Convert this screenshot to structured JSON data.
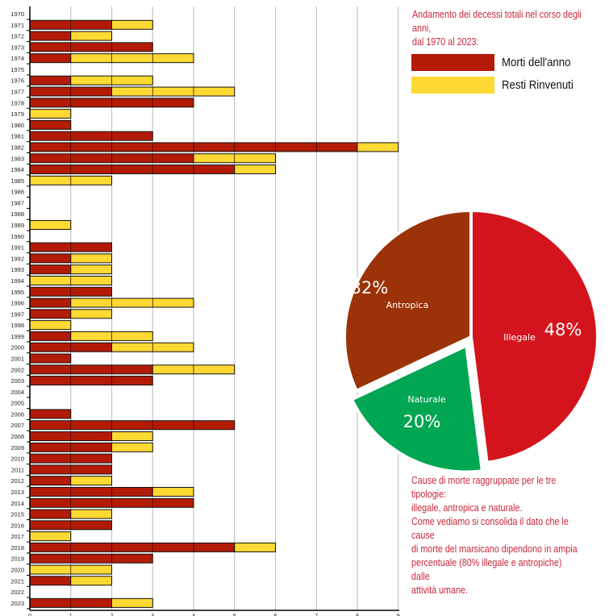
{
  "intro_text": [
    "Andamento dei decessi totali nel corso degli anni,",
    "dal 1970 al 2023:"
  ],
  "footer_text": [
    "Cause di morte raggruppate per le tre tipologie:",
    "illegale, antropica e naturale.",
    "Come vediamo si consolida il dato che le cause",
    "di morte del marsicano dipendono in ampia",
    "percentuale (80% illegale e antropiche) dalle",
    "attività umane."
  ],
  "chart_data": [
    {
      "type": "bar",
      "orientation": "horizontal",
      "stacked": true,
      "categories": [
        "1970",
        "1971",
        "1972",
        "1973",
        "1974",
        "1975",
        "1976",
        "1977",
        "1978",
        "1979",
        "1980",
        "1981",
        "1982",
        "1983",
        "1984",
        "1985",
        "1986",
        "1987",
        "1988",
        "1989",
        "1990",
        "1991",
        "1992",
        "1993",
        "1994",
        "1995",
        "1996",
        "1997",
        "1998",
        "1999",
        "2000",
        "2001",
        "2002",
        "2003",
        "2004",
        "2005",
        "2006",
        "2007",
        "2008",
        "2009",
        "2010",
        "2011",
        "2012",
        "2013",
        "2014",
        "2015",
        "2016",
        "2017",
        "2018",
        "2019",
        "2020",
        "2021",
        "2022",
        "2023"
      ],
      "series": [
        {
          "name": "Morti dell'anno",
          "color": "#b31b06",
          "values": [
            0,
            2,
            1,
            3,
            1,
            0,
            1,
            2,
            4,
            0,
            1,
            3,
            8,
            4,
            5,
            0,
            0,
            0,
            0,
            0,
            0,
            2,
            1,
            1,
            0,
            2,
            1,
            1,
            0,
            1,
            2,
            1,
            3,
            3,
            0,
            0,
            1,
            5,
            2,
            2,
            2,
            2,
            1,
            3,
            4,
            1,
            2,
            0,
            5,
            3,
            0,
            1,
            0,
            2
          ]
        },
        {
          "name": "Resti Rinvenuti",
          "color": "#ffd933",
          "values": [
            0,
            1,
            1,
            0,
            3,
            0,
            2,
            3,
            0,
            1,
            0,
            0,
            1,
            2,
            1,
            2,
            0,
            0,
            0,
            1,
            0,
            0,
            1,
            1,
            2,
            0,
            3,
            1,
            1,
            2,
            2,
            0,
            2,
            0,
            0,
            0,
            0,
            0,
            1,
            1,
            0,
            0,
            1,
            1,
            0,
            1,
            0,
            1,
            1,
            0,
            2,
            1,
            0,
            1
          ]
        }
      ],
      "xlim": [
        0,
        9
      ],
      "xticks": [
        "0",
        "1",
        "2",
        "3",
        "4",
        "5",
        "6",
        "7",
        "8",
        "9"
      ],
      "grid": true,
      "legend": "top-right"
    },
    {
      "type": "pie",
      "slices": [
        {
          "label": "Illegale",
          "value": 48,
          "pct_label": "48%",
          "color": "#d4141c"
        },
        {
          "label": "Naturale",
          "value": 20,
          "pct_label": "20%",
          "color": "#00a651",
          "exploded": true
        },
        {
          "label": "Antropica",
          "value": 32,
          "pct_label": "32%",
          "color": "#9c3208"
        }
      ]
    }
  ]
}
